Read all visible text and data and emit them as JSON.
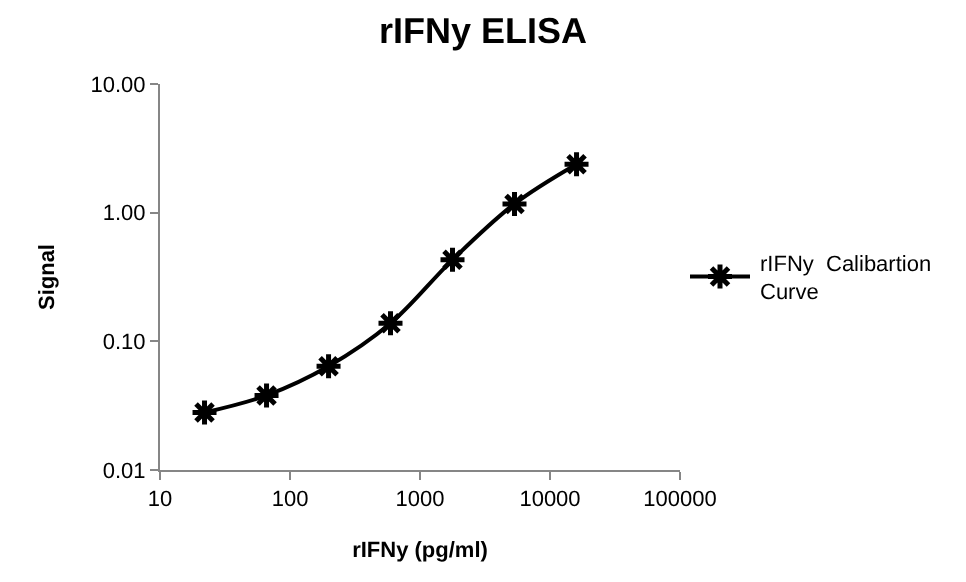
{
  "chart_data": {
    "type": "line",
    "title": "rIFNy ELISA",
    "xlabel": "rIFNy (pg/ml)",
    "ylabel": "Signal",
    "x": [
      22,
      66,
      198,
      593,
      1778,
      5333,
      16000
    ],
    "series": [
      {
        "name": "rIFNy  Calibartion Curve",
        "color": "#000000",
        "values": [
          0.028,
          0.038,
          0.064,
          0.138,
          0.43,
          1.17,
          2.38
        ]
      }
    ],
    "log": "xy",
    "xlim": [
      10,
      100000
    ],
    "xticks": [
      10,
      100,
      1000,
      10000,
      100000
    ],
    "ylim": [
      0.01,
      10
    ],
    "yticks": [
      {
        "value": 0.01,
        "label": "0.01"
      },
      {
        "value": 0.1,
        "label": "0.10"
      },
      {
        "value": 1,
        "label": "1.00"
      },
      {
        "value": 10,
        "label": "10.00"
      }
    ],
    "grid": false,
    "legend": "right",
    "marker": "cross",
    "line_style": "solid"
  }
}
